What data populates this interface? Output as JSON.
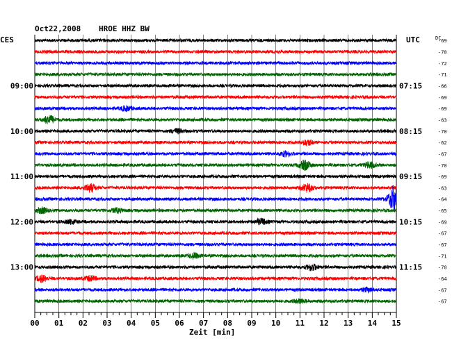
{
  "header": {
    "date": "Oct22,2008",
    "station": "HROE HHZ BW",
    "left_tz": "CES",
    "right_tz": "UTC",
    "dc_label": "DC"
  },
  "chart_data": {
    "type": "line",
    "title": "Oct22,2008 HROE HHZ BW",
    "xlabel": "Zeit [min]",
    "xlim": [
      0,
      15
    ],
    "x_ticks": [
      "00",
      "01",
      "02",
      "03",
      "04",
      "05",
      "06",
      "07",
      "08",
      "09",
      "10",
      "11",
      "12",
      "13",
      "14",
      "15"
    ],
    "rows_per_hour": 4,
    "minutes_per_row": 15,
    "left_hour_labels": [
      "09:00",
      "10:00",
      "11:00",
      "12:00",
      "13:00"
    ],
    "right_hour_labels": [
      "07:15",
      "08:15",
      "09:15",
      "10:15",
      "11:15"
    ],
    "trace_colors": [
      "#000000",
      "#ff0000",
      "#0000ff",
      "#006400"
    ],
    "dc_offsets": [
      -69,
      -70,
      -72,
      -71,
      -66,
      -69,
      -69,
      -63,
      -70,
      -62,
      -67,
      -70,
      -69,
      -63,
      -64,
      -65,
      -69,
      -67,
      -67,
      -71,
      -70,
      -64,
      -67,
      -67
    ],
    "events": [
      {
        "row": 6,
        "minute": 3.8,
        "amplitude": 0.5
      },
      {
        "row": 7,
        "minute": 0.6,
        "amplitude": 0.9
      },
      {
        "row": 8,
        "minute": 5.9,
        "amplitude": 0.45
      },
      {
        "row": 9,
        "minute": 11.3,
        "amplitude": 0.6
      },
      {
        "row": 10,
        "minute": 10.4,
        "amplitude": 0.5
      },
      {
        "row": 11,
        "minute": 11.2,
        "amplitude": 1.0
      },
      {
        "row": 11,
        "minute": 13.9,
        "amplitude": 0.6
      },
      {
        "row": 13,
        "minute": 2.3,
        "amplitude": 0.9
      },
      {
        "row": 13,
        "minute": 11.3,
        "amplitude": 0.9
      },
      {
        "row": 14,
        "minute": 14.9,
        "amplitude": 3.0
      },
      {
        "row": 15,
        "minute": 0.3,
        "amplitude": 0.6
      },
      {
        "row": 15,
        "minute": 3.4,
        "amplitude": 0.45
      },
      {
        "row": 16,
        "minute": 9.4,
        "amplitude": 0.6
      },
      {
        "row": 16,
        "minute": 1.5,
        "amplitude": 0.4
      },
      {
        "row": 19,
        "minute": 6.6,
        "amplitude": 0.6
      },
      {
        "row": 20,
        "minute": 11.5,
        "amplitude": 0.7
      },
      {
        "row": 21,
        "minute": 0.3,
        "amplitude": 0.7
      },
      {
        "row": 21,
        "minute": 2.3,
        "amplitude": 0.5
      },
      {
        "row": 22,
        "minute": 13.8,
        "amplitude": 0.4
      },
      {
        "row": 23,
        "minute": 11.0,
        "amplitude": 0.4
      }
    ]
  }
}
